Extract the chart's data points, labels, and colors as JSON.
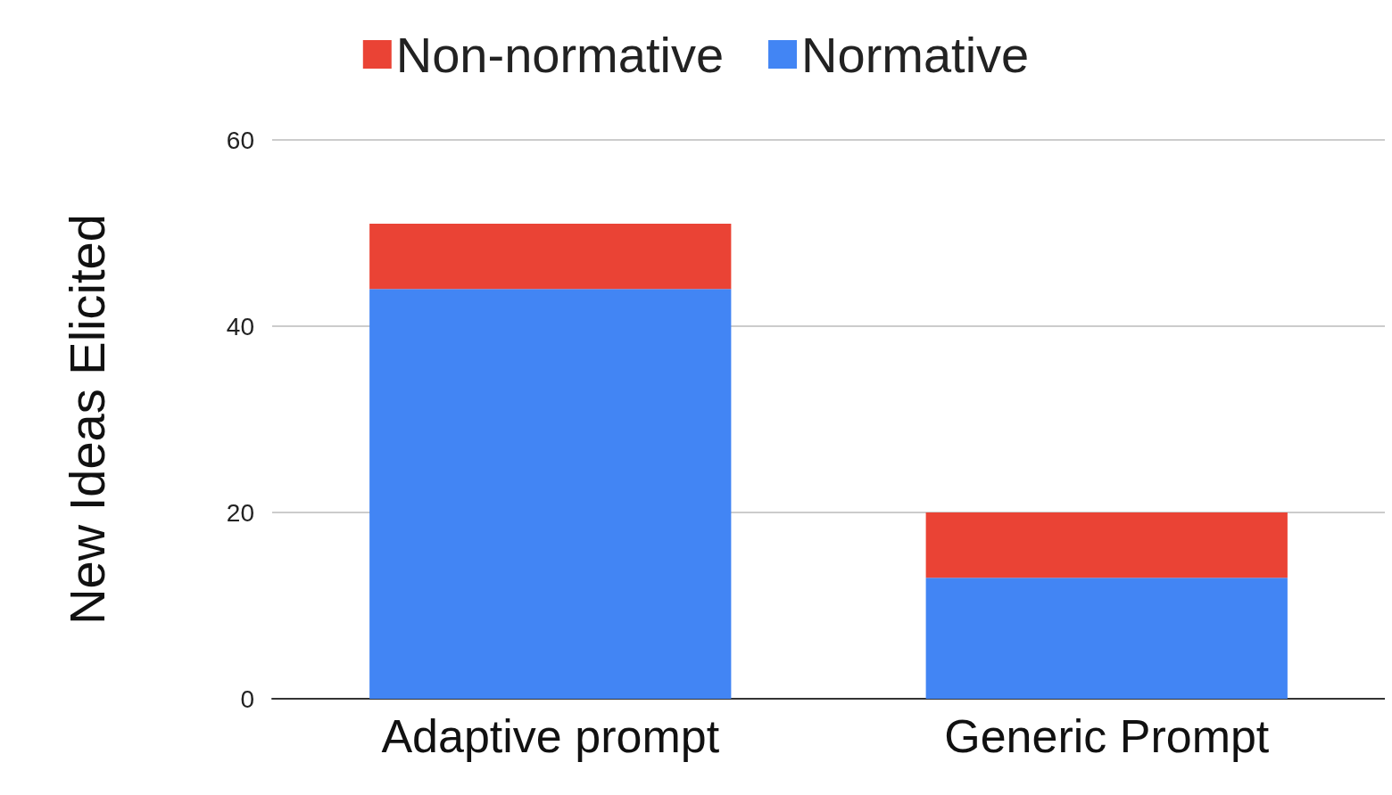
{
  "chart_data": {
    "type": "bar",
    "ylabel": "New Ideas Elicited",
    "categories": [
      "Adaptive prompt",
      "Generic Prompt"
    ],
    "series": [
      {
        "name": "Normative",
        "color": "#4285f4",
        "values": [
          44,
          13
        ]
      },
      {
        "name": "Non-normative",
        "color": "#ea4335",
        "values": [
          7,
          7
        ]
      }
    ],
    "stacked": true,
    "ylim": [
      0,
      60
    ],
    "yticks": [
      0,
      20,
      40,
      60
    ],
    "grid": "y",
    "legend": "top"
  }
}
